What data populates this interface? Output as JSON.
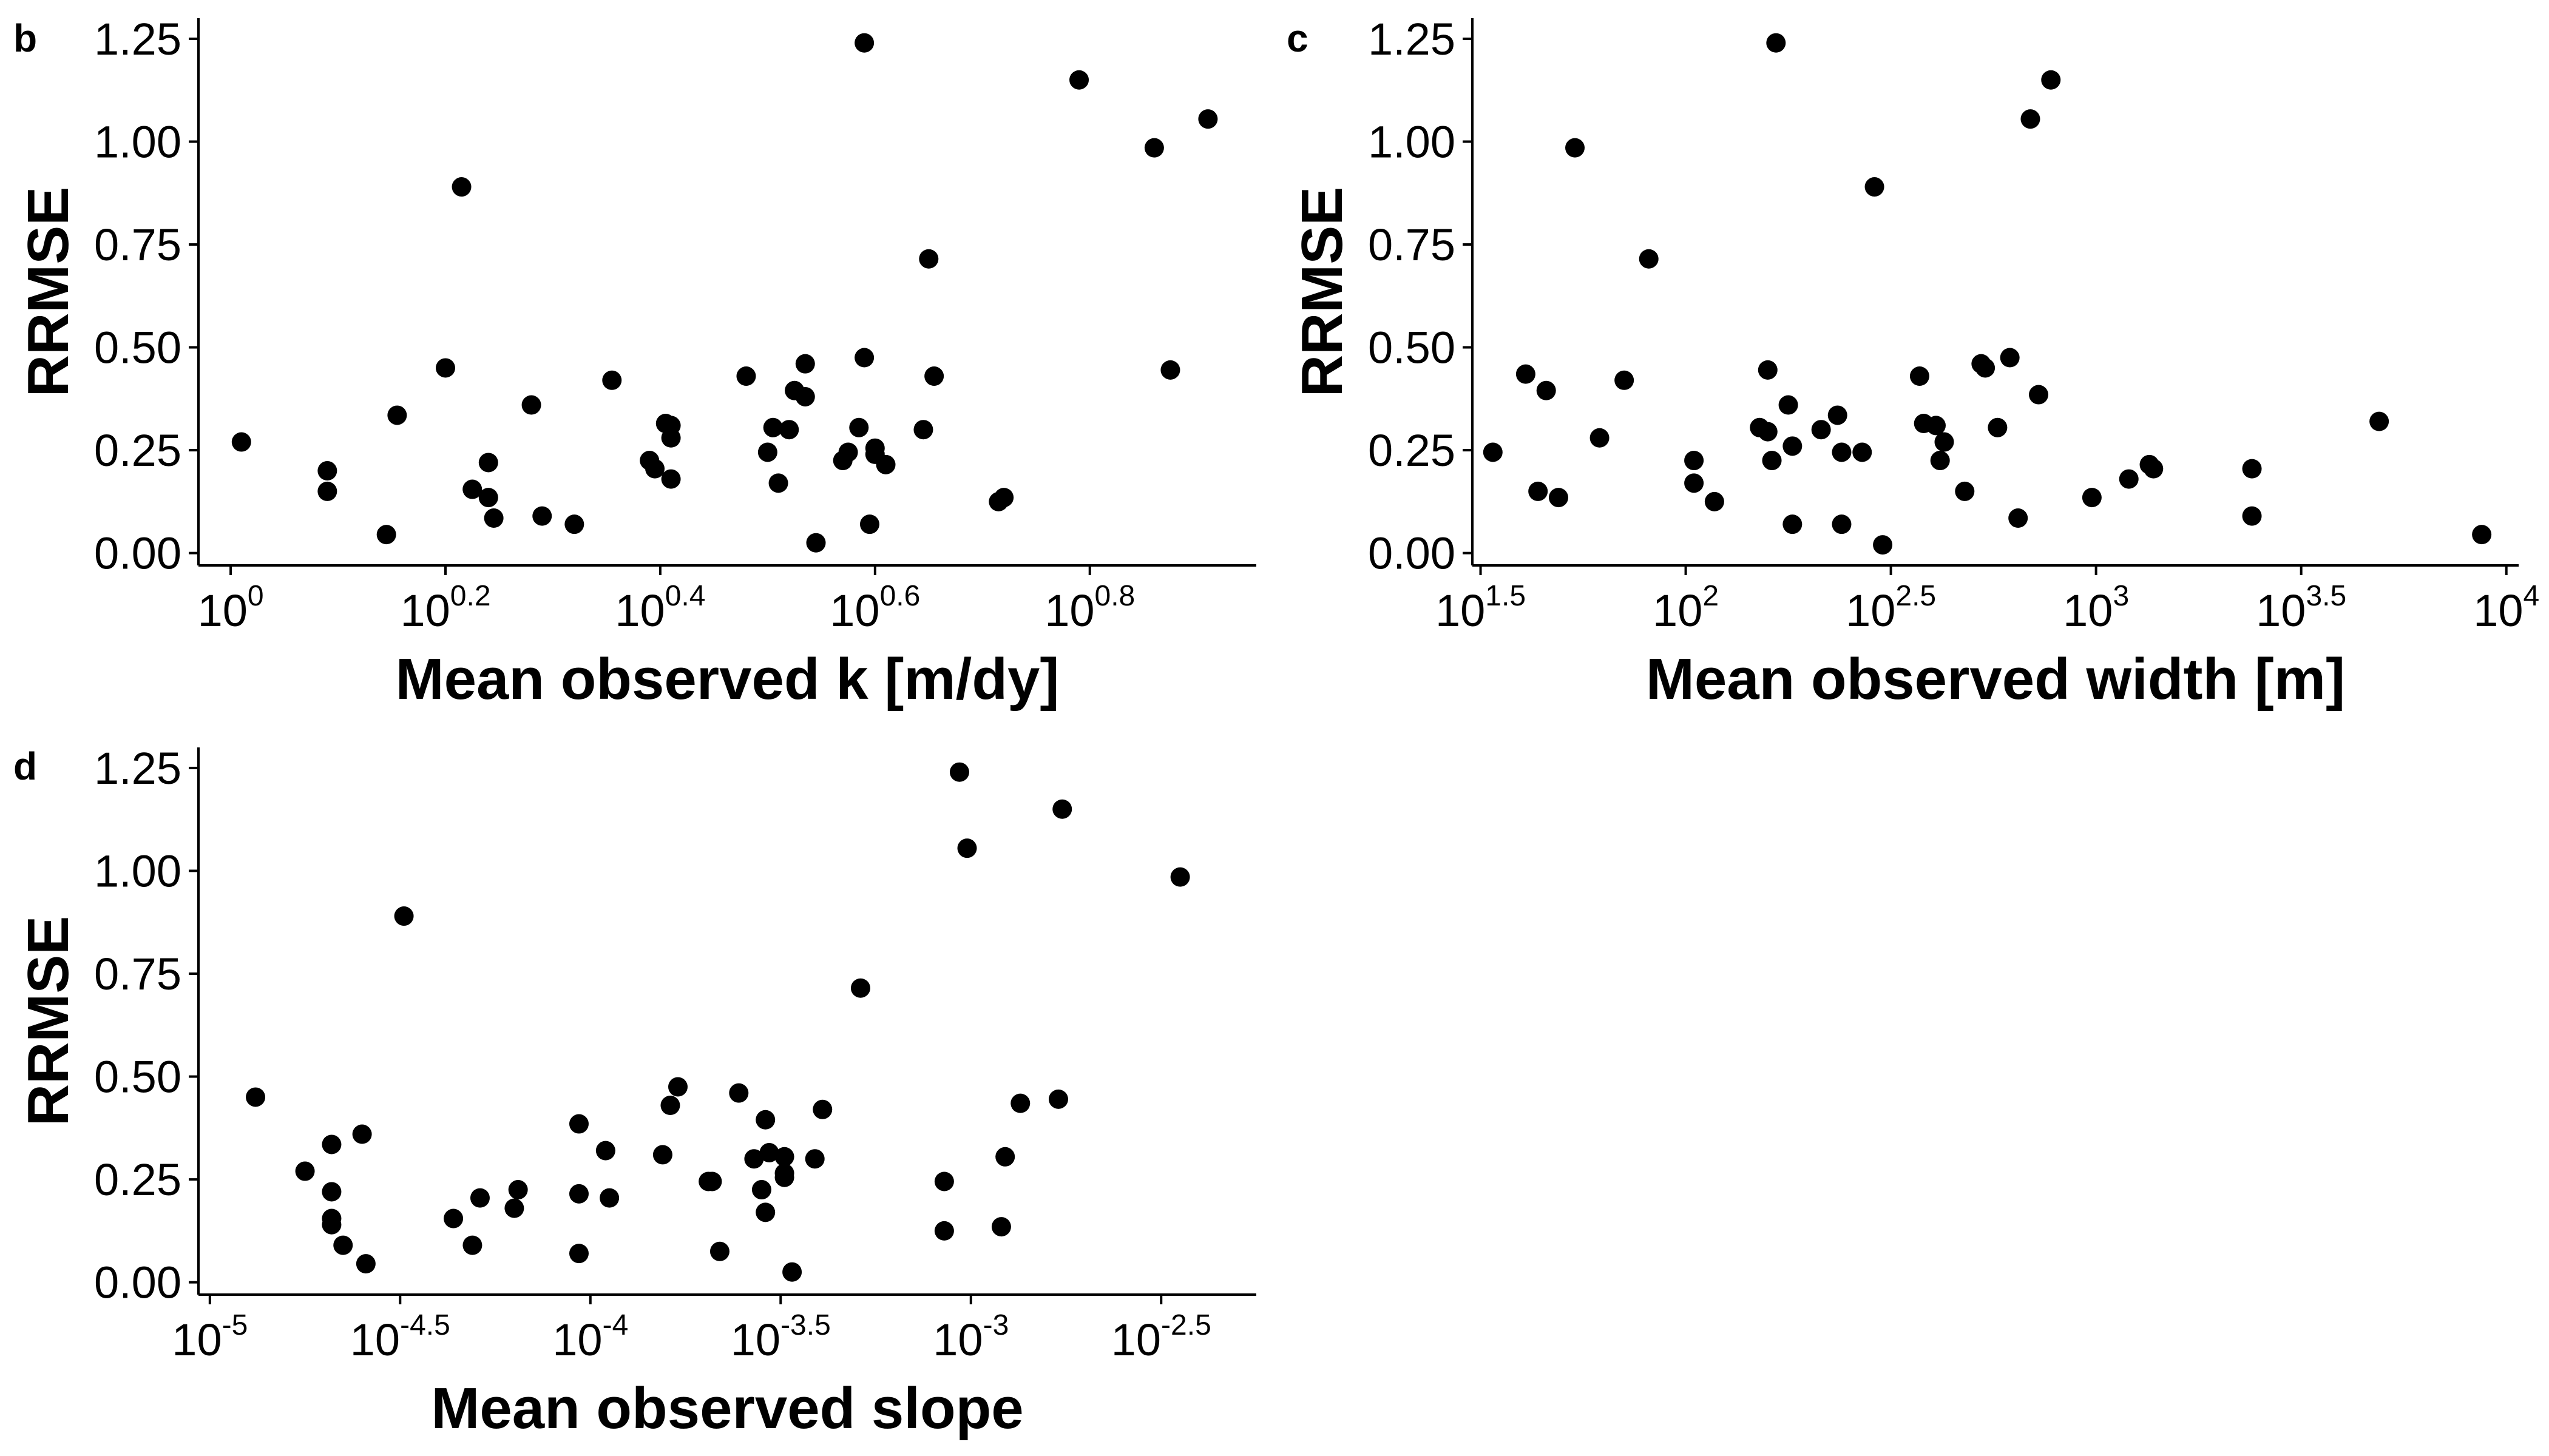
{
  "chart_data": [
    {
      "type": "scatter",
      "panel": "b",
      "xlabel": "Mean observed k [m/dy]",
      "ylabel": "RRMSE",
      "x_scale": "log10",
      "xlim_log10": [
        0.97,
        0.955
      ],
      "ylim": [
        -0.03,
        1.3
      ],
      "x_ticks": [
        {
          "base": "10",
          "exp": "0"
        },
        {
          "base": "10",
          "exp": "0.2"
        },
        {
          "base": "10",
          "exp": "0.4"
        },
        {
          "base": "10",
          "exp": "0.6"
        },
        {
          "base": "10",
          "exp": "0.8"
        }
      ],
      "x_tick_log10": [
        0,
        0.2,
        0.4,
        0.6,
        0.8
      ],
      "y_ticks": [
        "0.00",
        "0.25",
        "0.50",
        "0.75",
        "1.00",
        "1.25"
      ],
      "y_tick_values": [
        0,
        0.25,
        0.5,
        0.75,
        1.0,
        1.25
      ],
      "grid": false,
      "points_log10x_y": [
        [
          0.01,
          0.27
        ],
        [
          0.09,
          0.2
        ],
        [
          0.09,
          0.15
        ],
        [
          0.145,
          0.045
        ],
        [
          0.155,
          0.335
        ],
        [
          0.2,
          0.45
        ],
        [
          0.215,
          0.89
        ],
        [
          0.225,
          0.155
        ],
        [
          0.24,
          0.22
        ],
        [
          0.24,
          0.135
        ],
        [
          0.245,
          0.085
        ],
        [
          0.28,
          0.36
        ],
        [
          0.29,
          0.09
        ],
        [
          0.32,
          0.07
        ],
        [
          0.355,
          0.42
        ],
        [
          0.39,
          0.225
        ],
        [
          0.395,
          0.205
        ],
        [
          0.405,
          0.315
        ],
        [
          0.41,
          0.28
        ],
        [
          0.41,
          0.18
        ],
        [
          0.41,
          0.31
        ],
        [
          0.48,
          0.43
        ],
        [
          0.5,
          0.245
        ],
        [
          0.505,
          0.305
        ],
        [
          0.51,
          0.17
        ],
        [
          0.52,
          0.3
        ],
        [
          0.525,
          0.395
        ],
        [
          0.535,
          0.46
        ],
        [
          0.535,
          0.38
        ],
        [
          0.545,
          0.025
        ],
        [
          0.57,
          0.225
        ],
        [
          0.575,
          0.245
        ],
        [
          0.585,
          0.305
        ],
        [
          0.59,
          0.475
        ],
        [
          0.59,
          1.24
        ],
        [
          0.595,
          0.07
        ],
        [
          0.6,
          0.255
        ],
        [
          0.6,
          0.24
        ],
        [
          0.61,
          0.215
        ],
        [
          0.645,
          0.3
        ],
        [
          0.65,
          0.715
        ],
        [
          0.655,
          0.43
        ],
        [
          0.715,
          0.125
        ],
        [
          0.72,
          0.135
        ],
        [
          0.79,
          1.15
        ],
        [
          0.86,
          0.985
        ],
        [
          0.875,
          0.445
        ],
        [
          0.91,
          1.055
        ]
      ]
    },
    {
      "type": "scatter",
      "panel": "c",
      "xlabel": "Mean observed width [m]",
      "ylabel": "RRMSE",
      "x_scale": "log10",
      "xlim_log10": [
        1.48,
        4.03
      ],
      "ylim": [
        -0.03,
        1.3
      ],
      "x_ticks": [
        {
          "base": "10",
          "exp": "1.5"
        },
        {
          "base": "10",
          "exp": "2"
        },
        {
          "base": "10",
          "exp": "2.5"
        },
        {
          "base": "10",
          "exp": "3"
        },
        {
          "base": "10",
          "exp": "3.5"
        },
        {
          "base": "10",
          "exp": "4"
        }
      ],
      "x_tick_log10": [
        1.5,
        2.0,
        2.5,
        3.0,
        3.5,
        4.0
      ],
      "y_ticks": [
        "0.00",
        "0.25",
        "0.50",
        "0.75",
        "1.00",
        "1.25"
      ],
      "y_tick_values": [
        0,
        0.25,
        0.5,
        0.75,
        1.0,
        1.25
      ],
      "grid": false,
      "points_log10x_y": [
        [
          1.53,
          0.245
        ],
        [
          1.61,
          0.435
        ],
        [
          1.64,
          0.15
        ],
        [
          1.66,
          0.395
        ],
        [
          1.69,
          0.135
        ],
        [
          1.73,
          0.985
        ],
        [
          1.79,
          0.28
        ],
        [
          1.85,
          0.42
        ],
        [
          1.91,
          0.715
        ],
        [
          2.02,
          0.225
        ],
        [
          2.02,
          0.17
        ],
        [
          2.07,
          0.125
        ],
        [
          2.18,
          0.305
        ],
        [
          2.2,
          0.445
        ],
        [
          2.2,
          0.295
        ],
        [
          2.21,
          0.225
        ],
        [
          2.22,
          1.24
        ],
        [
          2.25,
          0.36
        ],
        [
          2.26,
          0.26
        ],
        [
          2.26,
          0.07
        ],
        [
          2.33,
          0.3
        ],
        [
          2.37,
          0.335
        ],
        [
          2.38,
          0.245
        ],
        [
          2.38,
          0.07
        ],
        [
          2.43,
          0.245
        ],
        [
          2.46,
          0.89
        ],
        [
          2.48,
          0.02
        ],
        [
          2.57,
          0.43
        ],
        [
          2.58,
          0.315
        ],
        [
          2.61,
          0.31
        ],
        [
          2.62,
          0.225
        ],
        [
          2.63,
          0.27
        ],
        [
          2.68,
          0.15
        ],
        [
          2.72,
          0.46
        ],
        [
          2.73,
          0.45
        ],
        [
          2.76,
          0.305
        ],
        [
          2.79,
          0.475
        ],
        [
          2.81,
          0.085
        ],
        [
          2.84,
          1.055
        ],
        [
          2.86,
          0.385
        ],
        [
          2.89,
          1.15
        ],
        [
          2.99,
          0.135
        ],
        [
          3.08,
          0.18
        ],
        [
          3.13,
          0.215
        ],
        [
          3.14,
          0.205
        ],
        [
          3.38,
          0.205
        ],
        [
          3.38,
          0.09
        ],
        [
          3.69,
          0.32
        ],
        [
          3.94,
          0.045
        ]
      ]
    },
    {
      "type": "scatter",
      "panel": "d",
      "xlabel": "Mean observed slope",
      "ylabel": "RRMSE",
      "x_scale": "log10",
      "xlim_log10": [
        -5.03,
        -2.25
      ],
      "ylim": [
        -0.03,
        1.3
      ],
      "x_ticks": [
        {
          "base": "10",
          "exp": "-5"
        },
        {
          "base": "10",
          "exp": "-4.5"
        },
        {
          "base": "10",
          "exp": "-4"
        },
        {
          "base": "10",
          "exp": "-3.5"
        },
        {
          "base": "10",
          "exp": "-3"
        },
        {
          "base": "10",
          "exp": "-2.5"
        }
      ],
      "x_tick_log10": [
        -5,
        -4.5,
        -4,
        -3.5,
        -3,
        -2.5
      ],
      "y_ticks": [
        "0.00",
        "0.25",
        "0.50",
        "0.75",
        "1.00",
        "1.25"
      ],
      "y_tick_values": [
        0,
        0.25,
        0.5,
        0.75,
        1.0,
        1.25
      ],
      "grid": false,
      "points_log10x_y": [
        [
          -4.88,
          0.45
        ],
        [
          -4.75,
          0.27
        ],
        [
          -4.68,
          0.335
        ],
        [
          -4.68,
          0.22
        ],
        [
          -4.68,
          0.155
        ],
        [
          -4.68,
          0.14
        ],
        [
          -4.65,
          0.09
        ],
        [
          -4.6,
          0.36
        ],
        [
          -4.59,
          0.045
        ],
        [
          -4.49,
          0.89
        ],
        [
          -4.36,
          0.155
        ],
        [
          -4.31,
          0.09
        ],
        [
          -4.29,
          0.205
        ],
        [
          -4.2,
          0.18
        ],
        [
          -4.19,
          0.225
        ],
        [
          -4.03,
          0.385
        ],
        [
          -4.03,
          0.215
        ],
        [
          -4.03,
          0.07
        ],
        [
          -3.96,
          0.32
        ],
        [
          -3.95,
          0.205
        ],
        [
          -3.81,
          0.31
        ],
        [
          -3.79,
          0.43
        ],
        [
          -3.77,
          0.475
        ],
        [
          -3.69,
          0.245
        ],
        [
          -3.68,
          0.245
        ],
        [
          -3.66,
          0.075
        ],
        [
          -3.61,
          0.46
        ],
        [
          -3.57,
          0.3
        ],
        [
          -3.55,
          0.225
        ],
        [
          -3.54,
          0.17
        ],
        [
          -3.54,
          0.395
        ],
        [
          -3.53,
          0.315
        ],
        [
          -3.49,
          0.305
        ],
        [
          -3.49,
          0.265
        ],
        [
          -3.49,
          0.255
        ],
        [
          -3.47,
          0.025
        ],
        [
          -3.41,
          0.3
        ],
        [
          -3.39,
          0.42
        ],
        [
          -3.29,
          0.715
        ],
        [
          -3.07,
          0.245
        ],
        [
          -3.07,
          0.125
        ],
        [
          -3.03,
          1.24
        ],
        [
          -3.01,
          1.055
        ],
        [
          -2.92,
          0.135
        ],
        [
          -2.91,
          0.305
        ],
        [
          -2.87,
          0.435
        ],
        [
          -2.77,
          0.445
        ],
        [
          -2.76,
          1.15
        ],
        [
          -2.45,
          0.985
        ]
      ]
    }
  ]
}
